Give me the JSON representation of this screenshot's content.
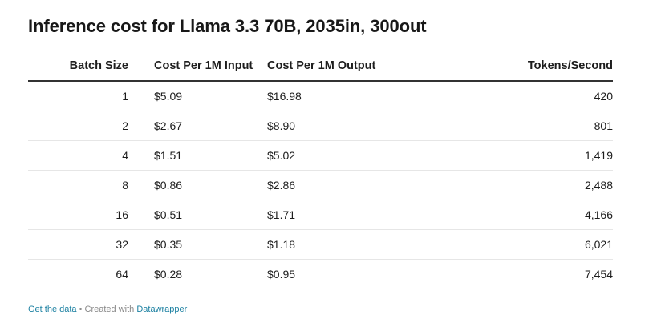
{
  "chart_data": {
    "type": "table",
    "title": "Inference cost for Llama 3.3 70B, 2035in, 300out",
    "columns": [
      "Batch Size",
      "Cost Per 1M Input",
      "Cost Per 1M Output",
      "Tokens/Second"
    ],
    "rows": [
      [
        "1",
        "$5.09",
        "$16.98",
        "420"
      ],
      [
        "2",
        "$2.67",
        "$8.90",
        "801"
      ],
      [
        "4",
        "$1.51",
        "$5.02",
        "1,419"
      ],
      [
        "8",
        "$0.86",
        "$2.86",
        "2,488"
      ],
      [
        "16",
        "$0.51",
        "$1.71",
        "4,166"
      ],
      [
        "32",
        "$0.35",
        "$1.18",
        "6,021"
      ],
      [
        "64",
        "$0.28",
        "$0.95",
        "7,454"
      ]
    ]
  },
  "footer": {
    "get_data": "Get the data",
    "separator": " • Created with ",
    "tool": "Datawrapper"
  },
  "colors": {
    "header_rule": "#333333",
    "row_rule": "#e6e6e6",
    "link": "#1d81a2"
  }
}
